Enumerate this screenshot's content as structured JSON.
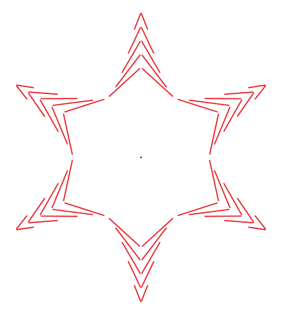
{
  "figure": {
    "title": "",
    "shape": "six-pointed star",
    "arm_count": 6,
    "chevrons_per_arm": 5,
    "stroke_color": "#e8141c",
    "center_dot_color": "#1a1aa8",
    "background": "#ffffff"
  }
}
